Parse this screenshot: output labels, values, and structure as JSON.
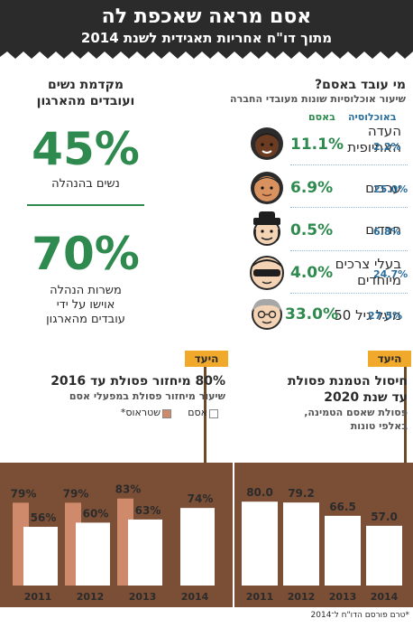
{
  "header": {
    "title": "אסם מראה שאכפת לה",
    "subtitle": "מתוך דו\"ח אחריות תאגידית לשנת 2014"
  },
  "who_works": {
    "title": "מי עובד באסם?",
    "subtitle": "שיעור אוכלוסיות שונות מעובדי החברה",
    "col_osem": "באסם",
    "col_population": "באוכלוסיה",
    "rows": [
      {
        "label_1": "העדה",
        "label_2": "האתיופית",
        "osem": "11.1%",
        "population": "2.2%",
        "icon": "ethiopian-person-icon"
      },
      {
        "label_1": "ערבים",
        "label_2": "",
        "osem": "6.9%",
        "population": "25.0%",
        "icon": "arab-person-icon"
      },
      {
        "label_1": "חרדים",
        "label_2": "",
        "osem": "0.5%",
        "population": "6.8%",
        "icon": "haredi-person-icon"
      },
      {
        "label_1": "בעלי צרכים",
        "label_2": "מיוחדים",
        "osem": "4.0%",
        "population": "24.7%",
        "icon": "special-needs-person-icon"
      },
      {
        "label_1": "מעל גיל 50",
        "label_2": "",
        "osem": "33.0%",
        "population": "27.5%",
        "icon": "older-person-icon"
      }
    ]
  },
  "promotion": {
    "title_1": "מקדמת נשים",
    "title_2": "ועובדים מהארגון",
    "stat1_value": "45%",
    "stat1_caption": "נשים בהנהלה",
    "stat2_value": "70%",
    "stat2_caption_1": "משרות הנהלה",
    "stat2_caption_2": "אוישו על ידי",
    "stat2_caption_3": "עובדים מהארגון"
  },
  "goal_label": "היעד",
  "chart_data": [
    {
      "type": "bar",
      "title": "80% מיחזור פסולת עד 2016",
      "subtitle": "שיעור מיחזור פסולת במפעלי אסם",
      "categories": [
        "2011",
        "2012",
        "2013",
        "2014"
      ],
      "ylim": [
        0,
        100
      ],
      "series": [
        {
          "name": "אסם",
          "values": [
            56,
            60,
            63,
            74
          ],
          "labels": [
            "56%",
            "60%",
            "63%",
            "74%"
          ],
          "color": "#ffffff"
        },
        {
          "name": "שטראוס*",
          "values": [
            79,
            79,
            83,
            null
          ],
          "labels": [
            "79%",
            "79%",
            "83%",
            ""
          ],
          "color": "#cf8a6c"
        }
      ]
    },
    {
      "type": "bar",
      "title": "חיסול הטמנת פסולת",
      "title_2": "עד שנת 2020",
      "subtitle": "פסולת שאסם הטמינה,",
      "subtitle_2": "באלפי טונות",
      "categories": [
        "2011",
        "2012",
        "2013",
        "2014"
      ],
      "ylim": [
        0,
        100
      ],
      "series": [
        {
          "name": "",
          "values": [
            80.0,
            79.2,
            66.5,
            57.0
          ],
          "labels": [
            "80.0",
            "79.2",
            "66.5",
            "57.0"
          ],
          "color": "#ffffff"
        }
      ]
    }
  ],
  "footer": "*טרם פורסם הדו\"ח ל־2014",
  "colors": {
    "green": "#2e8a4e",
    "blue": "#2a6e9c",
    "brown": "#7b4e36",
    "orange": "#f0a92a",
    "dark": "#2b2b2b"
  }
}
